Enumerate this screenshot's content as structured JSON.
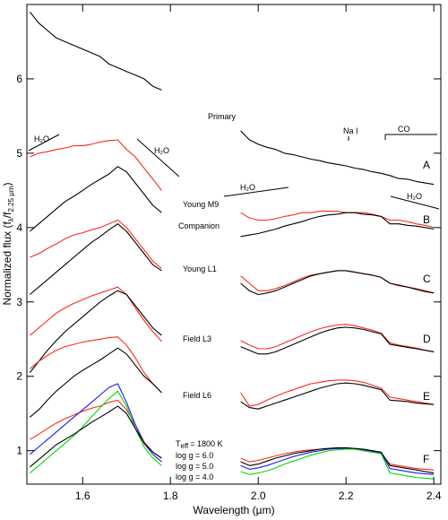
{
  "chart_data": {
    "type": "line",
    "xlabel": "Wavelength (µm)",
    "ylabel": [
      "Normalized flux (f",
      "λ",
      "/f",
      "2.25 µm",
      ")"
    ],
    "xlim": [
      1.473,
      2.416
    ],
    "ylim": [
      0.55,
      7.0
    ],
    "xticks": [
      1.6,
      1.8,
      {
        "value": 2.0,
        "label": "2.0"
      },
      2.2,
      2.4
    ],
    "yticks": [
      1,
      2,
      3,
      4,
      5,
      6
    ],
    "x": [
      1.48,
      1.5,
      1.52,
      1.54,
      1.56,
      1.58,
      1.6,
      1.62,
      1.64,
      1.66,
      1.68,
      1.7,
      1.72,
      1.74,
      1.76,
      1.78,
      1.8,
      1.96,
      1.98,
      2.0,
      2.02,
      2.04,
      2.06,
      2.08,
      2.1,
      2.12,
      2.14,
      2.16,
      2.18,
      2.2,
      2.22,
      2.24,
      2.26,
      2.28,
      2.3,
      2.32,
      2.34,
      2.36,
      2.38,
      2.4
    ],
    "series": [
      {
        "name": "Primary",
        "color": "#000000",
        "values": [
          6.9,
          6.75,
          6.65,
          6.55,
          6.5,
          6.45,
          6.4,
          6.35,
          6.3,
          6.2,
          6.15,
          6.1,
          6.05,
          6.0,
          5.9,
          5.85,
          null,
          5.3,
          5.18,
          5.12,
          5.08,
          5.05,
          5.0,
          4.98,
          4.95,
          4.92,
          4.9,
          4.87,
          4.85,
          4.83,
          4.8,
          4.78,
          4.75,
          4.73,
          4.7,
          4.66,
          4.65,
          4.62,
          4.6,
          4.58
        ]
      },
      {
        "name": "Young M9",
        "color": "#ff2a1a",
        "values": [
          4.95,
          5.0,
          5.02,
          5.05,
          5.07,
          5.1,
          5.1,
          5.12,
          5.15,
          5.17,
          5.18,
          5.05,
          4.95,
          4.8,
          4.65,
          4.5,
          null,
          4.2,
          4.13,
          4.1,
          4.1,
          4.12,
          4.15,
          4.17,
          4.2,
          4.2,
          4.22,
          4.22,
          4.22,
          4.2,
          4.2,
          4.2,
          4.18,
          4.15,
          4.1,
          4.1,
          4.08,
          4.05,
          4.03,
          4.0
        ]
      },
      {
        "name": "Companion",
        "color": "#000000",
        "values": [
          3.95,
          4.05,
          4.15,
          4.25,
          4.35,
          4.42,
          4.5,
          4.58,
          4.65,
          4.72,
          4.82,
          4.75,
          4.6,
          4.45,
          4.3,
          4.2,
          null,
          3.88,
          3.9,
          3.92,
          3.95,
          3.98,
          4.02,
          4.05,
          4.08,
          4.12,
          4.15,
          4.17,
          4.18,
          4.2,
          4.2,
          4.18,
          4.17,
          4.15,
          4.05,
          4.05,
          4.03,
          4.02,
          4.0,
          3.98
        ]
      },
      {
        "name": "Young L1",
        "color": "#ff2a1a",
        "values": [
          3.6,
          3.65,
          3.72,
          3.78,
          3.85,
          3.9,
          3.93,
          3.97,
          4.0,
          4.05,
          4.1,
          4.0,
          3.85,
          3.7,
          3.55,
          3.45,
          null,
          3.35,
          3.25,
          3.15,
          3.15,
          3.18,
          3.22,
          3.27,
          3.32,
          3.36,
          3.38,
          3.4,
          3.42,
          3.42,
          3.4,
          3.38,
          3.36,
          3.33,
          3.25,
          3.23,
          3.2,
          3.18,
          3.15,
          3.12
        ]
      },
      {
        "color": "#000000",
        "values": [
          3.1,
          3.2,
          3.3,
          3.4,
          3.5,
          3.6,
          3.7,
          3.8,
          3.88,
          3.97,
          4.05,
          3.95,
          3.8,
          3.65,
          3.5,
          3.42,
          null,
          3.25,
          3.15,
          3.1,
          3.12,
          3.15,
          3.2,
          3.25,
          3.3,
          3.35,
          3.38,
          3.4,
          3.42,
          3.42,
          3.4,
          3.38,
          3.36,
          3.33,
          3.25,
          3.22,
          3.2,
          3.17,
          3.14,
          3.12
        ]
      },
      {
        "name": "Field L3",
        "color": "#ff2a1a",
        "values": [
          2.55,
          2.65,
          2.75,
          2.85,
          2.92,
          2.98,
          3.03,
          3.08,
          3.12,
          3.16,
          3.2,
          3.1,
          2.92,
          2.75,
          2.6,
          2.47,
          null,
          2.48,
          2.42,
          2.37,
          2.37,
          2.4,
          2.45,
          2.5,
          2.55,
          2.6,
          2.64,
          2.67,
          2.69,
          2.7,
          2.68,
          2.65,
          2.62,
          2.58,
          2.45,
          2.42,
          2.4,
          2.38,
          2.35,
          2.33
        ]
      },
      {
        "color": "#000000",
        "values": [
          2.05,
          2.2,
          2.35,
          2.48,
          2.6,
          2.7,
          2.8,
          2.9,
          3.0,
          3.08,
          3.15,
          3.1,
          2.95,
          2.8,
          2.65,
          2.55,
          null,
          2.4,
          2.35,
          2.3,
          2.3,
          2.33,
          2.38,
          2.43,
          2.48,
          2.53,
          2.58,
          2.62,
          2.65,
          2.66,
          2.65,
          2.63,
          2.6,
          2.57,
          2.43,
          2.41,
          2.39,
          2.37,
          2.35,
          2.33
        ]
      },
      {
        "name": "Field L6",
        "color": "#ff2a1a",
        "values": [
          2.1,
          2.2,
          2.28,
          2.35,
          2.4,
          2.43,
          2.46,
          2.48,
          2.5,
          2.52,
          2.53,
          2.42,
          2.25,
          2.05,
          1.9,
          1.78,
          null,
          1.78,
          1.6,
          1.62,
          1.68,
          1.73,
          1.78,
          1.82,
          1.86,
          1.9,
          1.92,
          1.94,
          1.95,
          1.95,
          1.94,
          1.92,
          1.88,
          1.84,
          1.72,
          1.7,
          1.68,
          1.66,
          1.64,
          1.62
        ]
      },
      {
        "color": "#000000",
        "values": [
          1.45,
          1.55,
          1.68,
          1.8,
          1.9,
          2.0,
          2.08,
          2.15,
          2.22,
          2.3,
          2.38,
          2.3,
          2.15,
          2.0,
          1.9,
          1.78,
          null,
          1.66,
          1.58,
          1.56,
          1.6,
          1.64,
          1.68,
          1.72,
          1.76,
          1.8,
          1.84,
          1.87,
          1.9,
          1.91,
          1.9,
          1.88,
          1.85,
          1.82,
          1.68,
          1.67,
          1.66,
          1.64,
          1.63,
          1.62
        ]
      },
      {
        "name": "log g = 6.0",
        "color": "#ff2a1a",
        "values": [
          1.15,
          1.22,
          1.3,
          1.37,
          1.43,
          1.48,
          1.53,
          1.57,
          1.6,
          1.65,
          1.68,
          1.55,
          1.35,
          1.12,
          0.98,
          0.9,
          null,
          0.9,
          0.85,
          0.87,
          0.9,
          0.93,
          0.96,
          0.98,
          1.0,
          1.01,
          1.02,
          1.03,
          1.03,
          1.03,
          1.02,
          1.0,
          0.98,
          0.96,
          0.82,
          0.8,
          0.78,
          0.76,
          0.75,
          0.74
        ]
      },
      {
        "name": "log g = 5.0",
        "color": "#1a1aff",
        "values": [
          0.95,
          1.05,
          1.15,
          1.25,
          1.35,
          1.45,
          1.55,
          1.65,
          1.75,
          1.85,
          1.9,
          1.65,
          1.35,
          1.1,
          0.95,
          0.85,
          null,
          0.8,
          0.75,
          0.77,
          0.8,
          0.84,
          0.88,
          0.92,
          0.95,
          0.98,
          1.0,
          1.02,
          1.03,
          1.03,
          1.02,
          1.01,
          0.99,
          0.97,
          0.76,
          0.74,
          0.72,
          0.7,
          0.69,
          0.68
        ]
      },
      {
        "name": "log g = 4.0",
        "color": "#00dd00",
        "values": [
          0.7,
          0.8,
          0.9,
          1.0,
          1.1,
          1.2,
          1.32,
          1.45,
          1.58,
          1.7,
          1.8,
          1.6,
          1.3,
          1.05,
          0.9,
          0.8,
          null,
          0.72,
          0.68,
          0.7,
          0.73,
          0.77,
          0.82,
          0.86,
          0.9,
          0.94,
          0.97,
          1.0,
          1.01,
          1.02,
          1.02,
          1.0,
          0.98,
          0.96,
          0.7,
          0.68,
          0.66,
          0.64,
          0.63,
          0.62
        ]
      },
      {
        "color": "#000000",
        "values": [
          0.78,
          0.88,
          0.98,
          1.08,
          1.15,
          1.22,
          1.3,
          1.38,
          1.45,
          1.52,
          1.6,
          1.5,
          1.3,
          1.1,
          0.98,
          0.9,
          null,
          0.85,
          0.8,
          0.82,
          0.86,
          0.9,
          0.93,
          0.96,
          0.98,
          1.0,
          1.02,
          1.03,
          1.04,
          1.04,
          1.03,
          1.02,
          1.0,
          0.98,
          0.8,
          0.78,
          0.76,
          0.74,
          0.72,
          0.7
        ]
      }
    ],
    "annotations": {
      "panels": [
        "A",
        "B",
        "C",
        "D",
        "E",
        "F"
      ],
      "teff": [
        "T",
        "eff",
        "= 1800 K"
      ],
      "h2o": [
        "H₂O",
        "H₂O",
        "H₂O",
        "H₂O"
      ],
      "na": "Na I",
      "co": "CO"
    }
  }
}
